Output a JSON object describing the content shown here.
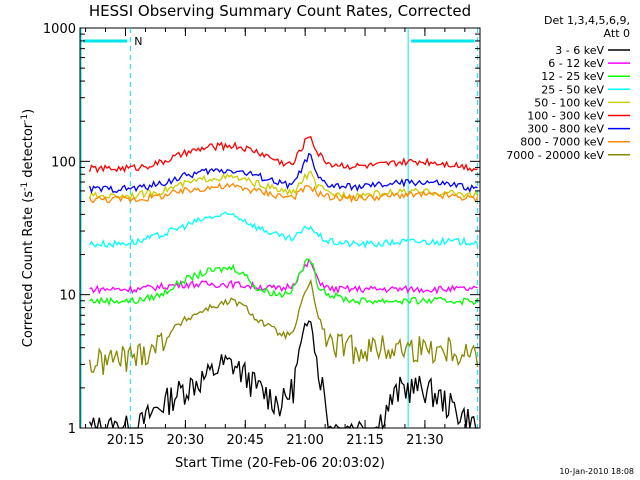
{
  "chart_data": {
    "type": "line",
    "title": "HESSI Observing Summary Count Rates, Corrected",
    "xlabel": "Start Time (20-Feb-06 20:03:02)",
    "ylabel_main": "Corrected Count Rate (s",
    "ylabel_sup": "-1",
    "ylabel_mid": " detector",
    "ylabel_sup2": "-1",
    "ylabel_end": ")",
    "yscale": "log",
    "ylim": [
      1,
      1000
    ],
    "xlim_minutes": [
      20.06,
      21.73
    ],
    "x_ticks": [
      {
        "label": "20:15",
        "t": 20.25
      },
      {
        "label": "20:30",
        "t": 20.5
      },
      {
        "label": "20:45",
        "t": 20.75
      },
      {
        "label": "21:00",
        "t": 21.0
      },
      {
        "label": "21:15",
        "t": 21.25
      },
      {
        "label": "21:30",
        "t": 21.5
      }
    ],
    "y_ticks": [
      {
        "label": "1",
        "v": 1
      },
      {
        "label": "10",
        "v": 10
      },
      {
        "label": "100",
        "v": 100
      },
      {
        "label": "1000",
        "v": 1000
      }
    ],
    "legend_header1": "Det 1,3,4,5,6,9,",
    "legend_header2": "Att 0",
    "legend_position": "right",
    "series": [
      {
        "name": "3 - 6 keV",
        "color": "#000000",
        "x": [
          20.1,
          20.3,
          20.4,
          20.5,
          20.6,
          20.65,
          20.7,
          20.75,
          20.8,
          20.9,
          20.95,
          21.0,
          21.02,
          21.05,
          21.1,
          21.2,
          21.3,
          21.4,
          21.5,
          21.6,
          21.72
        ],
        "y": [
          1,
          1,
          1.5,
          2,
          2.5,
          3,
          3,
          2.5,
          2,
          1.5,
          2,
          5,
          7,
          3,
          1,
          1,
          1,
          2,
          2,
          1.5,
          1
        ]
      },
      {
        "name": "6 - 12 keV",
        "color": "#ff00ff",
        "x": [
          20.1,
          20.3,
          20.4,
          20.5,
          20.6,
          20.7,
          20.8,
          20.9,
          20.95,
          21.0,
          21.02,
          21.05,
          21.1,
          21.2,
          21.3,
          21.4,
          21.5,
          21.6,
          21.72
        ],
        "y": [
          11,
          11,
          11.5,
          12,
          12,
          12,
          11.5,
          11,
          12,
          16,
          18,
          13,
          11,
          11,
          11,
          11,
          11,
          11,
          11
        ]
      },
      {
        "name": "12 - 25 keV",
        "color": "#00ff00",
        "x": [
          20.1,
          20.2,
          20.3,
          20.4,
          20.5,
          20.6,
          20.7,
          20.75,
          20.8,
          20.9,
          20.95,
          21.0,
          21.02,
          21.05,
          21.1,
          21.2,
          21.3,
          21.4,
          21.5,
          21.6,
          21.72
        ],
        "y": [
          9,
          9,
          9,
          10,
          13,
          15,
          16,
          14,
          11,
          10,
          11,
          17,
          19,
          12,
          10,
          9,
          9,
          9,
          9,
          9,
          9
        ]
      },
      {
        "name": "25 - 50 keV",
        "color": "#00ffff",
        "x": [
          20.1,
          20.2,
          20.3,
          20.4,
          20.5,
          20.6,
          20.7,
          20.8,
          20.9,
          20.95,
          21.0,
          21.02,
          21.05,
          21.1,
          21.2,
          21.3,
          21.4,
          21.5,
          21.6,
          21.72
        ],
        "y": [
          24,
          24,
          25,
          28,
          33,
          38,
          40,
          32,
          27,
          26,
          31,
          33,
          28,
          25,
          24,
          24,
          25,
          25,
          25,
          25
        ]
      },
      {
        "name": "50 - 100 keV",
        "color": "#cccc00",
        "x": [
          20.1,
          20.2,
          20.3,
          20.4,
          20.5,
          20.6,
          20.7,
          20.8,
          20.9,
          20.95,
          21.0,
          21.02,
          21.05,
          21.1,
          21.2,
          21.3,
          21.4,
          21.5,
          21.6,
          21.72
        ],
        "y": [
          55,
          55,
          56,
          60,
          68,
          75,
          76,
          68,
          60,
          58,
          76,
          82,
          65,
          57,
          56,
          57,
          59,
          59,
          58,
          56
        ]
      },
      {
        "name": "100 - 300 keV",
        "color": "#ff0000",
        "x": [
          20.1,
          20.2,
          20.3,
          20.4,
          20.5,
          20.6,
          20.7,
          20.8,
          20.9,
          20.95,
          21.0,
          21.02,
          21.05,
          21.1,
          21.2,
          21.3,
          21.4,
          21.5,
          21.6,
          21.72
        ],
        "y": [
          88,
          88,
          90,
          98,
          115,
          128,
          132,
          118,
          98,
          95,
          140,
          160,
          115,
          96,
          92,
          93,
          98,
          100,
          96,
          88
        ]
      },
      {
        "name": "300 - 800 keV",
        "color": "#0000ff",
        "x": [
          20.1,
          20.2,
          20.3,
          20.4,
          20.5,
          20.6,
          20.7,
          20.8,
          20.9,
          20.95,
          21.0,
          21.02,
          21.05,
          21.1,
          21.2,
          21.3,
          21.4,
          21.5,
          21.6,
          21.72
        ],
        "y": [
          62,
          62,
          63,
          68,
          78,
          85,
          86,
          78,
          68,
          66,
          98,
          112,
          75,
          66,
          64,
          66,
          69,
          70,
          67,
          62
        ]
      },
      {
        "name": "800 - 7000 keV",
        "color": "#ff8800",
        "x": [
          20.1,
          20.2,
          20.3,
          20.4,
          20.5,
          20.6,
          20.7,
          20.8,
          20.9,
          20.95,
          21.0,
          21.02,
          21.05,
          21.1,
          21.2,
          21.3,
          21.4,
          21.5,
          21.6,
          21.72
        ],
        "y": [
          52,
          52,
          52,
          55,
          60,
          64,
          65,
          60,
          55,
          54,
          62,
          66,
          58,
          54,
          53,
          54,
          56,
          56,
          55,
          52
        ]
      },
      {
        "name": "7000 - 20000 keV",
        "color": "#888800",
        "x": [
          20.1,
          20.2,
          20.3,
          20.4,
          20.5,
          20.6,
          20.7,
          20.75,
          20.8,
          20.9,
          20.95,
          21.0,
          21.02,
          21.05,
          21.1,
          21.2,
          21.3,
          21.4,
          21.5,
          21.6,
          21.72
        ],
        "y": [
          3,
          3.3,
          3.5,
          4.5,
          6.5,
          8,
          9,
          8,
          6.5,
          5,
          5,
          10,
          13,
          7,
          4.2,
          4,
          4,
          4,
          4,
          4,
          3.6
        ]
      }
    ],
    "annotations": {
      "night_label": "N",
      "night_bars": [
        [
          20.06,
          20.27
        ],
        [
          21.43,
          21.72
        ]
      ],
      "boundary_times": [
        20.27,
        21.43,
        21.72
      ],
      "timestamp": "10-Jan-2010 18:08"
    }
  }
}
